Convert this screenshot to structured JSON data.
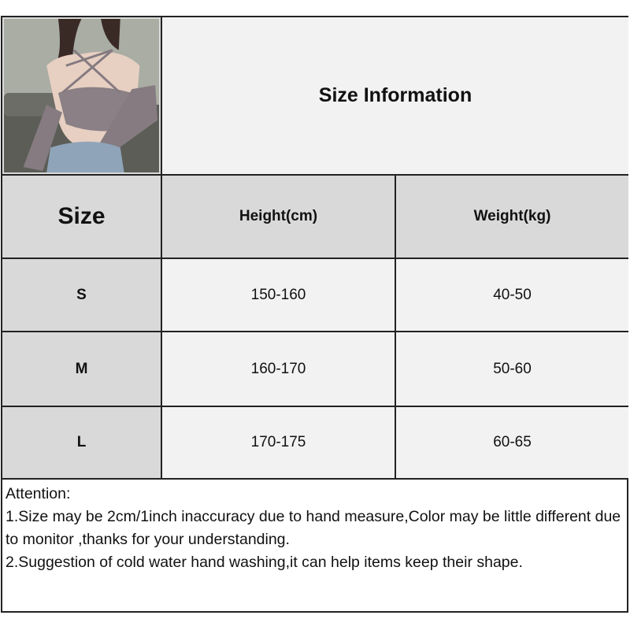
{
  "title": "Size Information",
  "product_photo": "product-photo",
  "table": {
    "headers": [
      "Size",
      "Height(cm)",
      "Weight(kg)"
    ],
    "rows": [
      {
        "size": "S",
        "height": "150-160",
        "weight": "40-50"
      },
      {
        "size": "M",
        "height": "160-170",
        "weight": "50-60"
      },
      {
        "size": "L",
        "height": "170-175",
        "weight": "60-65"
      }
    ]
  },
  "attention": {
    "heading": "Attention:",
    "lines": [
      "1.Size may be 2cm/1inch inaccuracy due to hand measure,Color may be little different due to monitor ,thanks for your understanding.",
      "2.Suggestion of cold water hand washing,it can help items keep their shape."
    ]
  },
  "colors": {
    "header_bg": "#d9d9d9",
    "cell_bg": "#f2f2f2",
    "border": "#222222"
  }
}
